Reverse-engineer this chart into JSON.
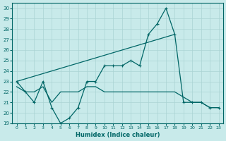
{
  "xlabel": "Humidex (Indice chaleur)",
  "bg_color": "#c8eaea",
  "line_color": "#006666",
  "grid_color": "#aad4d4",
  "xlim": [
    -0.5,
    23.5
  ],
  "ylim": [
    19,
    30.5
  ],
  "xticks": [
    0,
    1,
    2,
    3,
    4,
    5,
    6,
    7,
    8,
    9,
    10,
    11,
    12,
    13,
    14,
    15,
    16,
    17,
    18,
    19,
    20,
    21,
    22,
    23
  ],
  "yticks": [
    19,
    20,
    21,
    22,
    23,
    24,
    25,
    26,
    27,
    28,
    29,
    30
  ],
  "series_main": {
    "x": [
      0,
      1,
      2,
      3,
      4,
      5,
      6,
      7,
      8,
      9,
      10,
      11,
      12,
      13,
      14,
      15,
      16,
      17,
      18,
      19,
      20,
      21,
      22,
      23
    ],
    "y": [
      23,
      22,
      21,
      23,
      20.5,
      19,
      19.5,
      20.5,
      23,
      23,
      24.5,
      24.5,
      24.5,
      25,
      24.5,
      27.5,
      28.5,
      30,
      27.5,
      21,
      21,
      21,
      20.5,
      20.5
    ]
  },
  "series_diag": {
    "x": [
      0,
      18
    ],
    "y": [
      23,
      27.5
    ]
  },
  "series_flat": {
    "x": [
      0,
      1,
      2,
      3,
      4,
      5,
      6,
      7,
      8,
      9,
      10,
      11,
      12,
      13,
      14,
      15,
      16,
      17,
      18,
      19,
      20,
      21,
      22,
      23
    ],
    "y": [
      22.5,
      22,
      22,
      22.5,
      21,
      22,
      22,
      22,
      22.5,
      22.5,
      22,
      22,
      22,
      22,
      22,
      22,
      22,
      22,
      22,
      21.5,
      21,
      21,
      20.5,
      20.5
    ]
  }
}
